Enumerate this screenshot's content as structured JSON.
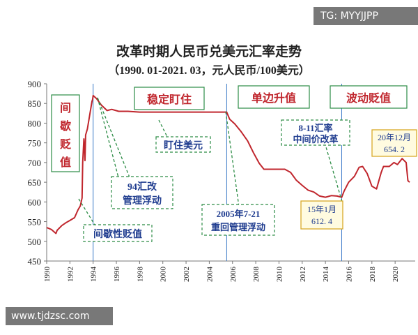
{
  "watermarks": {
    "top_right": "TG: MYYJJPP",
    "bottom_left": "www.tjdzsc.com"
  },
  "chart_data": {
    "type": "line",
    "title": "改革时期人民币兑美元汇率走势",
    "subtitle": "（1990. 01-2021. 03，元人民币/100美元）",
    "xlabel": "",
    "ylabel": "",
    "x_ticks": [
      "1990",
      "1992",
      "1994",
      "1996",
      "1998",
      "2000",
      "2002",
      "2004",
      "2006",
      "2008",
      "2010",
      "2012",
      "2014",
      "2016",
      "2018",
      "2020"
    ],
    "y_ticks": [
      450,
      500,
      550,
      600,
      650,
      700,
      750,
      800,
      850,
      900
    ],
    "xlim": [
      1990,
      2021.25
    ],
    "ylim": [
      450,
      900
    ],
    "grid": false,
    "line_color": "#c0262d",
    "series": [
      {
        "name": "",
        "x": [
          1990.0,
          1990.4,
          1990.8,
          1990.9,
          1991.3,
          1991.7,
          1992.0,
          1992.4,
          1992.7,
          1992.9,
          1993.05,
          1993.1,
          1993.2,
          1993.3,
          1993.35,
          1993.5,
          1993.7,
          1993.9,
          1993.95,
          1994.0,
          1994.3,
          1994.7,
          1995.2,
          1995.6,
          1996.2,
          1997.0,
          1998.0,
          2000.0,
          2002.0,
          2004.0,
          2005.5,
          2005.75,
          2006.2,
          2006.7,
          2007.3,
          2007.8,
          2008.3,
          2008.7,
          2010.5,
          2011.0,
          2011.5,
          2012.0,
          2012.5,
          2013.0,
          2013.5,
          2014.0,
          2014.5,
          2015.0,
          2015.4,
          2015.6,
          2016.0,
          2016.5,
          2016.9,
          2017.2,
          2017.6,
          2018.0,
          2018.4,
          2018.8,
          2019.0,
          2019.5,
          2019.9,
          2020.2,
          2020.6,
          2020.95,
          2021.1,
          2021.25
        ],
        "values": [
          535,
          530,
          520,
          528,
          540,
          548,
          553,
          560,
          580,
          590,
          610,
          700,
          760,
          705,
          770,
          785,
          820,
          855,
          860,
          870,
          862,
          846,
          832,
          835,
          830,
          830,
          828,
          828,
          828,
          828,
          828,
          810,
          798,
          780,
          755,
          725,
          698,
          683,
          683,
          675,
          655,
          642,
          630,
          625,
          615,
          612,
          616,
          615,
          612,
          627,
          650,
          665,
          688,
          690,
          672,
          640,
          633,
          675,
          690,
          690,
          700,
          695,
          710,
          700,
          654,
          650
        ]
      }
    ],
    "period_labels": [
      "间歇贬值",
      "稳定盯住",
      "单边升值",
      "波动贬值"
    ],
    "annotations": [
      {
        "text": "94汇改 管理浮动",
        "lines": [
          "94汇改",
          "管理浮动"
        ]
      },
      {
        "text": "盯住美元",
        "lines": [
          "盯住美元"
        ]
      },
      {
        "text": "间歇性贬值",
        "lines": [
          "间歇性贬值"
        ]
      },
      {
        "text": "2005年7-21 重回管理浮动",
        "lines": [
          "2005年7-21",
          "重回管理浮动"
        ]
      },
      {
        "text": "8-11汇率 中间价改革",
        "lines": [
          "8-11汇率",
          "中间价改革"
        ]
      },
      {
        "text": "15年1月 612.4",
        "lines": [
          "15年1月",
          "612. 4"
        ]
      },
      {
        "text": "20年12月 654.2",
        "lines": [
          "20年12月",
          "654. 2"
        ]
      }
    ]
  }
}
